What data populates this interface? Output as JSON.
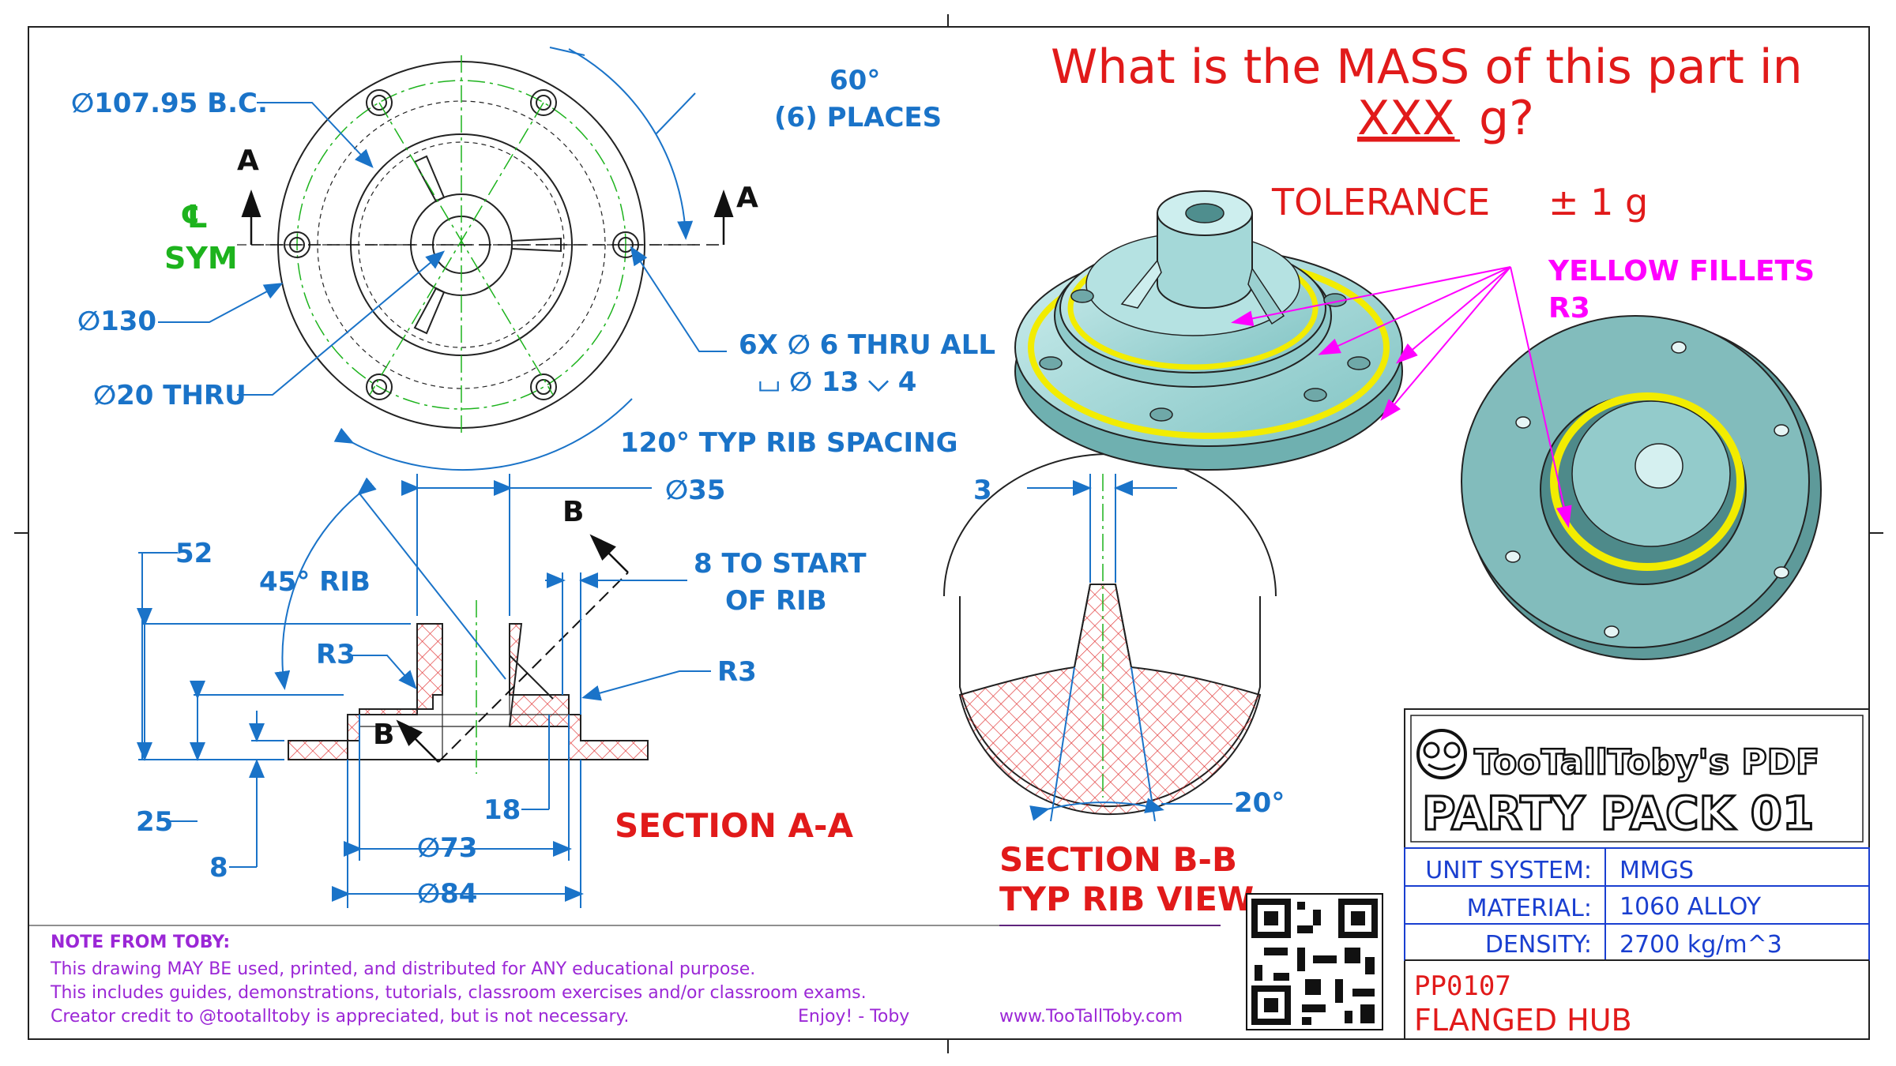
{
  "question": {
    "line1": "What is the MASS of this part in",
    "xxx": "XXX",
    "unit": "g?",
    "tolerance_label": "TOLERANCE",
    "tolerance_value": "± 1 g"
  },
  "front_view": {
    "bc_label": "∅107.95 B.C.",
    "angle_label": "60°",
    "places_label": "(6) PLACES",
    "dia130": "∅130",
    "dia20": "∅20 THRU",
    "holes_line1": "6X  ∅ 6 THRU ALL",
    "holes_line2": "⌴ ∅ 13 ⌵ 4",
    "rib_spacing": "120° TYP RIB SPACING",
    "cl_symbol": "℄",
    "sym": "SYM",
    "section_letter": "A"
  },
  "section_aa": {
    "dia35": "∅35",
    "d52": "52",
    "rib45": "45° RIB",
    "r3_left": "R3",
    "r3_right": "R3",
    "start_rib_1": "8 TO START",
    "start_rib_2": "OF RIB",
    "d25": "25",
    "d8": "8",
    "d18": "18",
    "dia73": "∅73",
    "dia84": "∅84",
    "title": "SECTION A-A",
    "b_label": "B"
  },
  "section_bb": {
    "d3": "3",
    "angle20": "20°",
    "title1": "SECTION B-B",
    "title2": "TYP RIB VIEW"
  },
  "fillets": {
    "line1": "YELLOW FILLETS",
    "line2": "R3"
  },
  "note": {
    "heading": "NOTE FROM TOBY:",
    "line1": "This drawing MAY BE used, printed, and distributed for ANY educational purpose.",
    "line2": "This includes guides, demonstrations, tutorials, classroom exercises and/or classroom exams.",
    "line3": "Creator credit to @tootalltoby is appreciated, but is not necessary.",
    "enjoy": "Enjoy! - Toby",
    "url": "www.TooTallToby.com"
  },
  "title_block": {
    "brand": "TooTallToby's PDF",
    "pack": "PARTY PACK 01",
    "rows": [
      {
        "label": "UNIT SYSTEM:",
        "value": "MMGS"
      },
      {
        "label": "MATERIAL:",
        "value": "1060 ALLOY"
      },
      {
        "label": "DENSITY:",
        "value": "2700 kg/m^3"
      }
    ],
    "part_no": "PP0107",
    "part_name": "FLANGED HUB"
  },
  "colors": {
    "dimension": "#1a73c8",
    "question": "#e11a1a",
    "fillet": "#ff00ff",
    "note": "#9b27d6",
    "title_block": "#1a3fd0",
    "part_body": "#a8dede",
    "fillet_fill": "#f2ec00"
  }
}
